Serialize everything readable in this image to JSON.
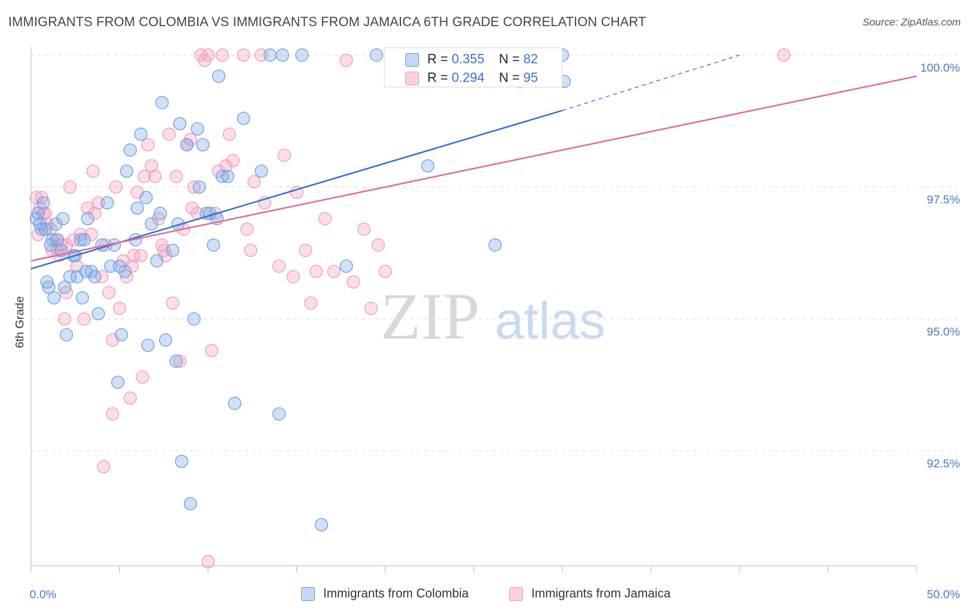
{
  "title": "IMMIGRANTS FROM COLOMBIA VS IMMIGRANTS FROM JAMAICA 6TH GRADE CORRELATION CHART",
  "source": "Source: ZipAtlas.com",
  "watermark": {
    "zip": "ZIP",
    "atlas": "atlas"
  },
  "colors": {
    "blue": "#6f9fe0",
    "blue_line": "#2f6fd0",
    "pink": "#f09ab5",
    "pink_line": "#e06a96",
    "tick": "#4a77c4"
  },
  "legend_box": {
    "rows": [
      {
        "r_label": "R = ",
        "r_value": "0.355",
        "n_label": "N = ",
        "n_value": "82"
      },
      {
        "r_label": "R = ",
        "r_value": "0.294",
        "n_label": "N = ",
        "n_value": "95"
      }
    ]
  },
  "legend_bottom": [
    "Immigrants from Colombia",
    "Immigrants from Jamaica"
  ],
  "chart_data": {
    "type": "scatter",
    "title": "IMMIGRANTS FROM COLOMBIA VS IMMIGRANTS FROM JAMAICA 6TH GRADE CORRELATION CHART",
    "xlabel": "",
    "ylabel": "6th Grade",
    "xlim": [
      0,
      50
    ],
    "ylim": [
      90.3,
      100.3
    ],
    "x_tick_labels": [
      "0.0%",
      "50.0%"
    ],
    "y_ticks": [
      92.5,
      95.0,
      97.5,
      100.0
    ],
    "y_tick_labels": [
      "92.5%",
      "95.0%",
      "97.5%",
      "100.0%"
    ],
    "grid": true,
    "legend": "bottom",
    "series": [
      {
        "name": "Immigrants from Colombia",
        "color": "#6f9fe0",
        "trend": {
          "x": [
            0,
            30
          ],
          "y": [
            95.95,
            98.95
          ],
          "dashed_to": [
            40,
            100.0
          ]
        },
        "points": [
          [
            0.3,
            96.9
          ],
          [
            0.5,
            96.8
          ],
          [
            0.6,
            96.7
          ],
          [
            0.8,
            96.7
          ],
          [
            0.9,
            95.7
          ],
          [
            1.0,
            95.6
          ],
          [
            1.1,
            96.4
          ],
          [
            1.2,
            96.5
          ],
          [
            1.3,
            95.4
          ],
          [
            1.5,
            96.5
          ],
          [
            1.7,
            96.3
          ],
          [
            1.8,
            96.9
          ],
          [
            1.9,
            95.6
          ],
          [
            2.0,
            94.7
          ],
          [
            2.2,
            95.8
          ],
          [
            2.4,
            96.2
          ],
          [
            2.6,
            95.8
          ],
          [
            2.8,
            96.5
          ],
          [
            2.9,
            95.4
          ],
          [
            3.1,
            95.9
          ],
          [
            3.2,
            96.9
          ],
          [
            3.4,
            95.9
          ],
          [
            3.6,
            95.8
          ],
          [
            3.8,
            95.1
          ],
          [
            4.0,
            96.4
          ],
          [
            4.3,
            97.2
          ],
          [
            4.5,
            96.0
          ],
          [
            4.7,
            96.4
          ],
          [
            4.9,
            93.8
          ],
          [
            5.1,
            94.7
          ],
          [
            5.3,
            95.9
          ],
          [
            5.4,
            97.8
          ],
          [
            5.6,
            98.2
          ],
          [
            5.9,
            96.5
          ],
          [
            6.0,
            97.1
          ],
          [
            6.2,
            98.5
          ],
          [
            6.5,
            97.3
          ],
          [
            6.6,
            94.5
          ],
          [
            7.1,
            96.1
          ],
          [
            7.3,
            97.0
          ],
          [
            7.4,
            99.1
          ],
          [
            7.6,
            94.6
          ],
          [
            8.0,
            96.3
          ],
          [
            8.2,
            94.2
          ],
          [
            8.3,
            96.8
          ],
          [
            8.4,
            98.7
          ],
          [
            8.5,
            92.3
          ],
          [
            8.8,
            98.3
          ],
          [
            9.0,
            91.5
          ],
          [
            9.2,
            95.0
          ],
          [
            9.4,
            98.6
          ],
          [
            9.5,
            97.5
          ],
          [
            9.7,
            98.3
          ],
          [
            9.9,
            97.0
          ],
          [
            10.1,
            97.0
          ],
          [
            10.3,
            96.4
          ],
          [
            10.5,
            96.9
          ],
          [
            10.6,
            99.6
          ],
          [
            10.8,
            97.7
          ],
          [
            11.1,
            97.7
          ],
          [
            11.5,
            93.4
          ],
          [
            12.0,
            98.8
          ],
          [
            13.0,
            97.8
          ],
          [
            13.5,
            100.0
          ],
          [
            14.2,
            100.0
          ],
          [
            14.0,
            93.2
          ],
          [
            15.3,
            100.0
          ],
          [
            16.4,
            91.1
          ],
          [
            17.8,
            96.0
          ],
          [
            19.5,
            100.0
          ],
          [
            21.0,
            100.0
          ],
          [
            22.4,
            97.9
          ],
          [
            26.2,
            96.4
          ],
          [
            30.0,
            100.0
          ],
          [
            30.1,
            99.5
          ],
          [
            0.4,
            97.0
          ],
          [
            0.7,
            97.2
          ],
          [
            1.4,
            96.8
          ],
          [
            2.5,
            96.2
          ],
          [
            3.0,
            96.5
          ],
          [
            5.0,
            96.0
          ],
          [
            6.8,
            96.8
          ]
        ]
      },
      {
        "name": "Immigrants from Jamaica",
        "color": "#f09ab5",
        "trend": {
          "x": [
            0,
            50
          ],
          "y": [
            96.1,
            99.6
          ]
        },
        "points": [
          [
            0.3,
            97.3
          ],
          [
            0.4,
            96.6
          ],
          [
            0.5,
            97.1
          ],
          [
            0.6,
            97.3
          ],
          [
            0.7,
            97.0
          ],
          [
            0.9,
            96.8
          ],
          [
            1.1,
            96.7
          ],
          [
            1.2,
            96.3
          ],
          [
            1.4,
            96.5
          ],
          [
            1.5,
            96.3
          ],
          [
            1.7,
            96.4
          ],
          [
            1.9,
            95.0
          ],
          [
            2.0,
            96.4
          ],
          [
            2.2,
            97.5
          ],
          [
            2.4,
            96.5
          ],
          [
            2.6,
            96.0
          ],
          [
            2.8,
            96.6
          ],
          [
            3.0,
            95.0
          ],
          [
            3.2,
            97.1
          ],
          [
            3.4,
            96.6
          ],
          [
            3.6,
            97.0
          ],
          [
            3.8,
            97.2
          ],
          [
            4.0,
            95.8
          ],
          [
            4.2,
            96.4
          ],
          [
            4.4,
            95.5
          ],
          [
            4.6,
            93.2
          ],
          [
            4.8,
            97.5
          ],
          [
            5.0,
            95.2
          ],
          [
            5.2,
            96.1
          ],
          [
            5.4,
            95.8
          ],
          [
            5.6,
            93.5
          ],
          [
            5.7,
            96.0
          ],
          [
            5.8,
            96.2
          ],
          [
            6.0,
            97.4
          ],
          [
            6.2,
            96.2
          ],
          [
            6.4,
            97.7
          ],
          [
            6.6,
            98.3
          ],
          [
            6.8,
            97.9
          ],
          [
            7.0,
            97.7
          ],
          [
            7.2,
            96.9
          ],
          [
            7.4,
            96.4
          ],
          [
            7.6,
            96.2
          ],
          [
            7.8,
            98.5
          ],
          [
            8.0,
            95.3
          ],
          [
            8.2,
            97.7
          ],
          [
            8.4,
            94.2
          ],
          [
            8.6,
            96.7
          ],
          [
            8.8,
            98.3
          ],
          [
            9.0,
            98.4
          ],
          [
            9.2,
            97.5
          ],
          [
            9.4,
            97.0
          ],
          [
            9.6,
            100.0
          ],
          [
            9.8,
            99.9
          ],
          [
            10.0,
            100.0
          ],
          [
            10.2,
            94.4
          ],
          [
            10.4,
            97.0
          ],
          [
            10.6,
            97.8
          ],
          [
            10.8,
            100.0
          ],
          [
            11.0,
            97.9
          ],
          [
            11.2,
            98.5
          ],
          [
            11.4,
            98.0
          ],
          [
            12.0,
            100.0
          ],
          [
            12.2,
            96.7
          ],
          [
            12.4,
            96.3
          ],
          [
            13.0,
            100.0
          ],
          [
            13.2,
            97.2
          ],
          [
            14.0,
            96.0
          ],
          [
            14.3,
            98.1
          ],
          [
            14.8,
            95.8
          ],
          [
            15.0,
            97.4
          ],
          [
            15.5,
            96.3
          ],
          [
            15.8,
            95.3
          ],
          [
            16.1,
            95.9
          ],
          [
            16.6,
            96.9
          ],
          [
            17.1,
            95.9
          ],
          [
            17.8,
            99.9
          ],
          [
            18.2,
            95.7
          ],
          [
            18.8,
            96.7
          ],
          [
            19.2,
            95.2
          ],
          [
            19.6,
            96.4
          ],
          [
            20.0,
            95.9
          ],
          [
            23.0,
            100.0
          ],
          [
            27.6,
            99.5
          ],
          [
            42.5,
            100.0
          ],
          [
            10.0,
            90.4
          ],
          [
            4.1,
            92.2
          ],
          [
            6.3,
            93.9
          ],
          [
            4.6,
            94.6
          ],
          [
            2.0,
            95.5
          ],
          [
            0.8,
            97.0
          ],
          [
            1.6,
            96.2
          ],
          [
            3.5,
            97.8
          ],
          [
            7.5,
            96.3
          ],
          [
            9.1,
            97.1
          ],
          [
            12.6,
            97.6
          ]
        ]
      }
    ]
  }
}
